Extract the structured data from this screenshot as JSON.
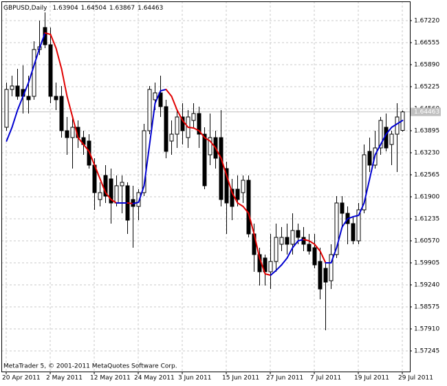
{
  "chart_data": {
    "type": "candlestick",
    "title": "GBPUSD,Daily",
    "footer": "MetaTrader 5, © 2001-2011 MetaQuotes Software Corp.",
    "categories": [
      "20 Apr 2011",
      null,
      null,
      null,
      null,
      null,
      null,
      null,
      "2 May 2011",
      null,
      null,
      null,
      null,
      null,
      null,
      null,
      "12 May 2011",
      null,
      null,
      null,
      null,
      null,
      null,
      null,
      "24 May 2011",
      null,
      null,
      null,
      null,
      null,
      null,
      null,
      "3 Jun 2011",
      null,
      null,
      null,
      null,
      null,
      null,
      null,
      "15 Jun 2011",
      null,
      null,
      null,
      null,
      null,
      null,
      null,
      "27 Jun 2011",
      null,
      null,
      null,
      null,
      null,
      null,
      null,
      "7 Jul 2011",
      null,
      null,
      null,
      null,
      null,
      null,
      null,
      "19 Jul 2011",
      null,
      null,
      null,
      null,
      null,
      null,
      null,
      "29 Jul 2011"
    ],
    "open": [
      1.63999,
      1.65142,
      1.65246,
      1.65142,
      1.64934,
      1.64934,
      1.66347,
      1.67012,
      1.66492,
      1.64934,
      1.64934,
      1.63895,
      1.63687,
      1.63999,
      1.63687,
      1.63583,
      1.62856,
      1.61817,
      1.62544,
      1.6244,
      1.61713,
      1.62233,
      1.62233,
      1.61817,
      1.61609,
      1.62025,
      1.63895,
      1.6483,
      1.65038,
      1.64622,
      1.63583,
      1.63791,
      1.6431,
      1.63687,
      1.64206,
      1.64414,
      1.63791,
      1.63168,
      1.63687,
      1.63687,
      1.62752,
      1.62129,
      1.62129,
      1.62025,
      1.62399,
      1.60778,
      1.60155,
      1.60051,
      1.59635,
      1.59947,
      1.60466,
      1.60674,
      1.60466,
      1.60882,
      1.60674,
      1.60466,
      1.60363,
      1.59947,
      1.59739,
      1.59365,
      1.60155,
      1.61713,
      1.61401,
      1.6109,
      1.6057,
      1.61505,
      1.63271,
      1.62856,
      1.63375,
      1.63999,
      1.63479,
      1.63791,
      1.63904
    ],
    "high": [
      1.65349,
      1.65557,
      1.65765,
      1.65869,
      1.65557,
      1.66596,
      1.6722,
      1.67469,
      1.67012,
      1.65349,
      1.65246,
      1.6431,
      1.6431,
      1.64206,
      1.63895,
      1.63791,
      1.63064,
      1.62336,
      1.62856,
      1.62752,
      1.62544,
      1.62544,
      1.62336,
      1.62233,
      1.62129,
      1.64103,
      1.65246,
      1.65349,
      1.65557,
      1.6483,
      1.64206,
      1.64518,
      1.64726,
      1.64518,
      1.64726,
      1.64622,
      1.63999,
      1.64414,
      1.63895,
      1.64518,
      1.6296,
      1.6244,
      1.62544,
      1.62544,
      1.62544,
      1.6109,
      1.60363,
      1.60155,
      1.60778,
      1.6109,
      1.60986,
      1.6109,
      1.61401,
      1.6109,
      1.60986,
      1.60778,
      1.60778,
      1.60363,
      1.59947,
      1.60466,
      1.61921,
      1.61921,
      1.61609,
      1.61298,
      1.61713,
      1.63479,
      1.63687,
      1.63895,
      1.6431,
      1.64414,
      1.63895,
      1.64726,
      1.64504
    ],
    "low": [
      1.63895,
      1.64934,
      1.6483,
      1.64414,
      1.64414,
      1.6483,
      1.6618,
      1.66388,
      1.64726,
      1.64518,
      1.63687,
      1.63168,
      1.62752,
      1.63375,
      1.63168,
      1.62752,
      1.61505,
      1.61609,
      1.61713,
      1.6109,
      1.61609,
      1.61401,
      1.60778,
      1.60363,
      1.61194,
      1.61921,
      1.63791,
      1.64518,
      1.6431,
      1.63064,
      1.63168,
      1.63375,
      1.63479,
      1.63375,
      1.63999,
      1.63375,
      1.62129,
      1.62856,
      1.62752,
      1.61609,
      1.60778,
      1.61194,
      1.61609,
      1.61713,
      1.60674,
      1.59635,
      1.5922,
      1.5922,
      1.59116,
      1.59635,
      1.60259,
      1.60155,
      1.60155,
      1.60466,
      1.60259,
      1.60155,
      1.59739,
      1.58804,
      1.57869,
      1.59116,
      1.60051,
      1.60986,
      1.60466,
      1.60466,
      1.60466,
      1.61401,
      1.62648,
      1.62752,
      1.63168,
      1.63271,
      1.62856,
      1.62648,
      1.63867
    ],
    "close": [
      1.65142,
      1.65246,
      1.64934,
      1.64934,
      1.6483,
      1.66347,
      1.6643,
      1.66492,
      1.64934,
      1.6483,
      1.63895,
      1.63687,
      1.63999,
      1.63687,
      1.63479,
      1.62856,
      1.62025,
      1.62025,
      1.61921,
      1.61713,
      1.62233,
      1.62336,
      1.61194,
      1.61609,
      1.62025,
      1.63895,
      1.65142,
      1.65038,
      1.64622,
      1.63271,
      1.63791,
      1.6431,
      1.63895,
      1.6431,
      1.64414,
      1.63791,
      1.62233,
      1.63687,
      1.63064,
      1.61817,
      1.61713,
      1.61609,
      1.61817,
      1.62399,
      1.60778,
      1.60155,
      1.59635,
      1.59635,
      1.59947,
      1.60674,
      1.60674,
      1.60466,
      1.60882,
      1.60674,
      1.60466,
      1.60259,
      1.59843,
      1.59116,
      1.59323,
      1.60155,
      1.61713,
      1.61401,
      1.6109,
      1.6057,
      1.61505,
      1.63168,
      1.62856,
      1.63375,
      1.64206,
      1.63375,
      1.63791,
      1.6431,
      1.64463
    ],
    "ma": {
      "color_up": "#0000d0",
      "color_down": "#e00000",
      "values": [
        1.63583,
        1.63999,
        1.64518,
        1.64934,
        1.65349,
        1.65869,
        1.66388,
        1.66846,
        1.66804,
        1.66388,
        1.65765,
        1.64934,
        1.6431,
        1.63687,
        1.63479,
        1.63271,
        1.62856,
        1.6244,
        1.62025,
        1.61817,
        1.61713,
        1.61713,
        1.61713,
        1.61692,
        1.61734,
        1.62233,
        1.63479,
        1.64726,
        1.651,
        1.65142,
        1.64934,
        1.64518,
        1.64206,
        1.63999,
        1.63978,
        1.63895,
        1.63687,
        1.63583,
        1.63375,
        1.63064,
        1.62544,
        1.62025,
        1.61713,
        1.61609,
        1.61401,
        1.60778,
        1.60051,
        1.59573,
        1.59531,
        1.59677,
        1.59843,
        1.60051,
        1.60363,
        1.6057,
        1.60611,
        1.6057,
        1.60466,
        1.60259,
        1.59905,
        1.59905,
        1.60363,
        1.60986,
        1.61235,
        1.61298,
        1.61339,
        1.61713,
        1.6244,
        1.63168,
        1.63479,
        1.63791,
        1.63999,
        1.64103,
        1.64206
      ]
    },
    "ylim": [
      1.56622,
      1.67801
    ],
    "yticks": [
      {
        "value": 1.6722,
        "label": "1.67220"
      },
      1.66555,
      {
        "value": 1.6589,
        "label": "1.65890"
      },
      {
        "value": 1.65225,
        "label": "1.65225"
      },
      {
        "value": 1.6456,
        "label": "1.64560"
      },
      1.63895,
      {
        "value": 1.6323,
        "label": "1.63230"
      },
      1.62565,
      {
        "value": 1.619,
        "label": "1.61900"
      },
      1.61235,
      {
        "value": 1.6057,
        "label": "1.60570"
      },
      1.59905,
      {
        "value": 1.5924,
        "label": "1.59240"
      },
      1.58575,
      {
        "value": 1.5791,
        "label": "1.57910"
      },
      1.57245
    ],
    "grid": true,
    "candle_color": "#000000",
    "price_line_color": "#c0c0c0"
  }
}
